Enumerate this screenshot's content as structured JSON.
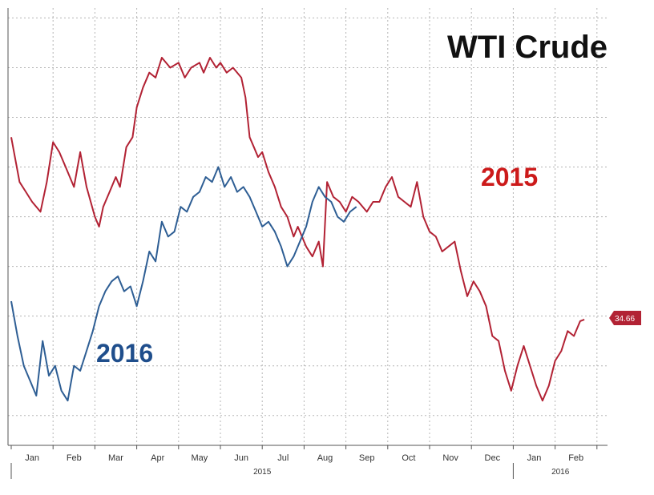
{
  "chart_data": {
    "type": "line",
    "title": "WTI Crude",
    "xlabel": "",
    "ylabel": "",
    "grid": true,
    "x_ticks": [
      "Jan",
      "Feb",
      "Mar",
      "Apr",
      "May",
      "Jun",
      "Jul",
      "Aug",
      "Sep",
      "Oct",
      "Nov",
      "Dec",
      "Jan",
      "Feb"
    ],
    "year_labels": [
      "2015",
      "2016"
    ],
    "ylim": [
      22,
      66
    ],
    "series": [
      {
        "name": "2015",
        "color": "#b22234",
        "label_color": "#cc1a1a",
        "x": [
          0.0,
          0.2,
          0.35,
          0.5,
          0.7,
          0.85,
          1.0,
          1.15,
          1.3,
          1.5,
          1.65,
          1.8,
          2.0,
          2.1,
          2.2,
          2.35,
          2.5,
          2.6,
          2.75,
          2.9,
          3.0,
          3.15,
          3.3,
          3.45,
          3.6,
          3.8,
          4.0,
          4.15,
          4.3,
          4.5,
          4.6,
          4.75,
          4.9,
          5.0,
          5.15,
          5.3,
          5.5,
          5.6,
          5.7,
          5.8,
          5.9,
          6.0,
          6.15,
          6.3,
          6.45,
          6.6,
          6.75,
          6.85,
          6.95,
          7.05,
          7.2,
          7.35,
          7.45,
          7.55,
          7.7,
          7.85,
          8.0,
          8.15,
          8.3,
          8.5,
          8.65,
          8.8,
          8.95,
          9.1,
          9.25,
          9.4,
          9.55,
          9.7,
          9.85,
          10.0,
          10.15,
          10.3,
          10.45,
          10.6,
          10.75,
          10.9,
          11.05,
          11.2,
          11.35,
          11.5,
          11.65,
          11.8,
          11.95,
          12.1,
          12.25,
          12.4,
          12.55,
          12.7,
          12.85,
          13.0,
          13.15,
          13.3,
          13.45,
          13.6,
          13.7
        ],
        "y": [
          53,
          48.5,
          47.5,
          46.5,
          45.5,
          48.5,
          52.5,
          51.5,
          50,
          48,
          51.5,
          48,
          45,
          44,
          46,
          47.5,
          49,
          48,
          52,
          53,
          56,
          58,
          59.5,
          59,
          61,
          60,
          60.5,
          59,
          60,
          60.5,
          59.5,
          61,
          60,
          60.5,
          59.5,
          60,
          59,
          57,
          53,
          52,
          51,
          51.5,
          49.5,
          48,
          46,
          45,
          43,
          44,
          43,
          42,
          41,
          42.5,
          40,
          48.5,
          47,
          46.5,
          45.5,
          47,
          46.5,
          45.5,
          46.5,
          46.5,
          48,
          49,
          47,
          46.5,
          46,
          48.5,
          45,
          43.5,
          43,
          41.5,
          42,
          42.5,
          39.5,
          37,
          38.5,
          37.5,
          36,
          33,
          32.5,
          29.5,
          27.5,
          30,
          32,
          30,
          28,
          26.5,
          28,
          30.5,
          31.5,
          33.5,
          33,
          34.5,
          34.66
        ]
      },
      {
        "name": "2016",
        "color": "#2e5e94",
        "label_color": "#1f4e8c",
        "x": [
          0.0,
          0.15,
          0.3,
          0.45,
          0.6,
          0.75,
          0.9,
          1.05,
          1.2,
          1.35,
          1.5,
          1.65,
          1.8,
          1.95,
          2.1,
          2.25,
          2.4,
          2.55,
          2.7,
          2.85,
          3.0,
          3.15,
          3.3,
          3.45,
          3.6,
          3.75,
          3.9,
          4.05,
          4.2,
          4.35,
          4.5,
          4.65,
          4.8,
          4.95,
          5.1,
          5.25,
          5.4,
          5.55,
          5.7,
          5.85,
          6.0,
          6.15,
          6.3,
          6.45,
          6.6,
          6.75,
          6.9,
          7.05,
          7.2,
          7.35,
          7.5,
          7.65,
          7.8,
          7.95,
          8.1,
          8.25
        ],
        "y": [
          36.5,
          33,
          30,
          28.5,
          27,
          32.5,
          29,
          30,
          27.5,
          26.5,
          30,
          29.5,
          31.5,
          33.5,
          36,
          37.5,
          38.5,
          39,
          37.5,
          38,
          36,
          38.5,
          41.5,
          40.5,
          44.5,
          43,
          43.5,
          46,
          45.5,
          47,
          47.5,
          49,
          48.5,
          50,
          48,
          49,
          47.5,
          48,
          47,
          45.5,
          44,
          44.5,
          43.5,
          42,
          40,
          41,
          42.5,
          44,
          46.5,
          48,
          47,
          46.5,
          45,
          44.5,
          45.5,
          46
        ]
      }
    ],
    "last_value_label": "34.66"
  }
}
